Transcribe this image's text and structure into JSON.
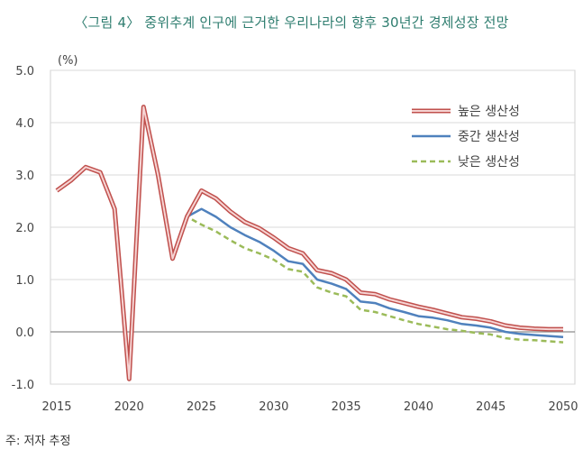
{
  "title": "〈그림 4〉 중위추계 인구에 근거한 우리나라의 향후 30년간 경제성장 전망",
  "source": "주: 저자 추정",
  "chart_data": {
    "type": "line",
    "unit_label": "(%)",
    "xlim": [
      2015,
      2050
    ],
    "ylim": [
      -1.0,
      5.0
    ],
    "x_ticks": [
      2015,
      2020,
      2025,
      2030,
      2035,
      2040,
      2045,
      2050
    ],
    "y_ticks": [
      -1.0,
      0.0,
      1.0,
      2.0,
      3.0,
      4.0,
      5.0
    ],
    "y_tick_labels": [
      "-1.0",
      "0.0",
      "1.0",
      "2.0",
      "3.0",
      "4.0",
      "5.0"
    ],
    "grid": "horizontal",
    "legend_position": "top-right",
    "x": [
      2015,
      2016,
      2017,
      2018,
      2019,
      2020,
      2021,
      2022,
      2023,
      2024,
      2025,
      2026,
      2027,
      2028,
      2029,
      2030,
      2031,
      2032,
      2033,
      2034,
      2035,
      2036,
      2037,
      2038,
      2039,
      2040,
      2041,
      2042,
      2043,
      2044,
      2045,
      2046,
      2047,
      2048,
      2049,
      2050
    ],
    "series": [
      {
        "name": "높은 생산성",
        "color": "#c0504d",
        "style": "double",
        "values": [
          2.7,
          2.9,
          3.15,
          3.05,
          2.35,
          -0.9,
          4.3,
          3.0,
          1.4,
          2.2,
          2.7,
          2.55,
          2.3,
          2.1,
          1.98,
          1.8,
          1.6,
          1.5,
          1.18,
          1.12,
          1.0,
          0.75,
          0.72,
          0.62,
          0.55,
          0.48,
          0.42,
          0.35,
          0.28,
          0.25,
          0.2,
          0.12,
          0.08,
          0.06,
          0.05,
          0.05
        ]
      },
      {
        "name": "중간 생산성",
        "color": "#4f81bd",
        "style": "solid",
        "values": [
          2.7,
          2.9,
          3.15,
          3.05,
          2.35,
          -0.9,
          4.3,
          3.0,
          1.4,
          2.2,
          2.35,
          2.2,
          2.0,
          1.85,
          1.72,
          1.55,
          1.35,
          1.3,
          1.0,
          0.92,
          0.82,
          0.58,
          0.55,
          0.45,
          0.38,
          0.3,
          0.27,
          0.22,
          0.15,
          0.12,
          0.08,
          0.0,
          -0.04,
          -0.06,
          -0.08,
          -0.1
        ]
      },
      {
        "name": "낮은 생산성",
        "color": "#9bbb59",
        "style": "dashed",
        "values": [
          2.7,
          2.9,
          3.15,
          3.05,
          2.35,
          -0.9,
          4.3,
          3.0,
          1.4,
          2.2,
          2.05,
          1.92,
          1.75,
          1.6,
          1.5,
          1.38,
          1.2,
          1.15,
          0.85,
          0.75,
          0.68,
          0.42,
          0.38,
          0.3,
          0.22,
          0.15,
          0.1,
          0.05,
          0.02,
          -0.02,
          -0.05,
          -0.12,
          -0.15,
          -0.16,
          -0.18,
          -0.2
        ]
      }
    ]
  }
}
